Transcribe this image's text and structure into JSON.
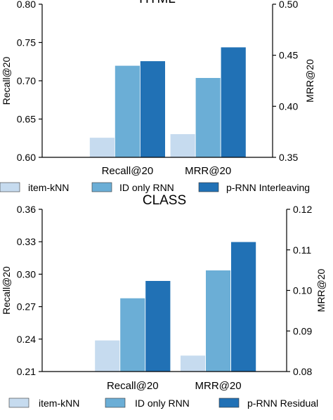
{
  "chart_data": [
    {
      "type": "bar",
      "title": "HTML",
      "categories": [
        "Recall@20",
        "MRR@20"
      ],
      "ylabel": "Recall@20",
      "y2label": "MRR@20",
      "ylim": [
        0.6,
        0.8
      ],
      "y2lim": [
        0.35,
        0.5
      ],
      "yticks": [
        "0.60",
        "0.65",
        "0.70",
        "0.75",
        "0.80"
      ],
      "y2ticks": [
        "0.35",
        "0.40",
        "0.45",
        "0.50"
      ],
      "series": [
        {
          "name": "item-kNN",
          "color": "#c6dbef",
          "values": [
            0.626,
            0.373
          ]
        },
        {
          "name": "ID only RNN",
          "color": "#6baed6",
          "values": [
            0.72,
            0.428
          ]
        },
        {
          "name": "p-RNN Interleaving",
          "color": "#2171b5",
          "values": [
            0.726,
            0.458
          ]
        }
      ],
      "legend_position": "bottom",
      "grid": false
    },
    {
      "type": "bar",
      "title": "CLASS",
      "categories": [
        "Recall@20",
        "MRR@20"
      ],
      "ylabel": "Recall@20",
      "y2label": "MRR@20",
      "ylim": [
        0.21,
        0.36
      ],
      "y2lim": [
        0.08,
        0.12
      ],
      "yticks": [
        "0.21",
        "0.24",
        "0.27",
        "0.30",
        "0.33",
        "0.36"
      ],
      "y2ticks": [
        "0.08",
        "0.09",
        "0.10",
        "0.11",
        "0.12"
      ],
      "series": [
        {
          "name": "item-kNN",
          "color": "#c6dbef",
          "values": [
            0.239,
            0.084
          ]
        },
        {
          "name": "ID only RNN",
          "color": "#6baed6",
          "values": [
            0.278,
            0.105
          ]
        },
        {
          "name": "p-RNN Residual",
          "color": "#2171b5",
          "values": [
            0.294,
            0.112
          ]
        }
      ],
      "legend_position": "bottom",
      "grid": false
    }
  ]
}
